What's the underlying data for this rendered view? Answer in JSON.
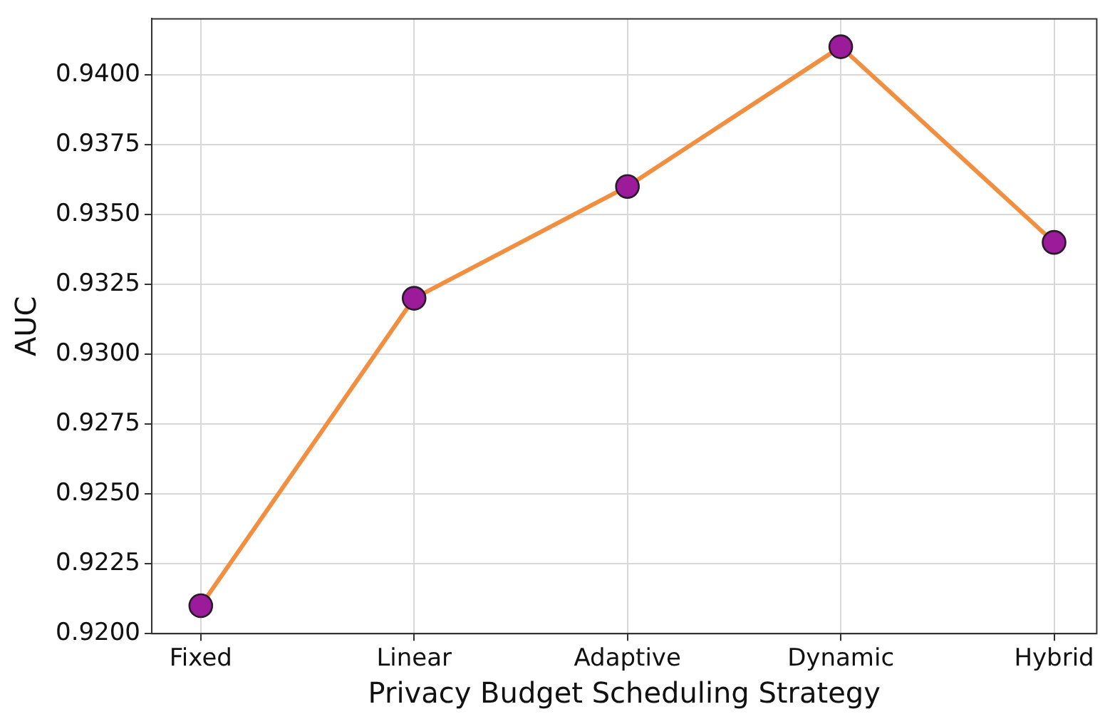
{
  "chart_data": {
    "type": "line",
    "xlabel": "Privacy Budget Scheduling Strategy",
    "ylabel": "AUC",
    "categories": [
      "Fixed",
      "Linear",
      "Adaptive",
      "Dynamic",
      "Hybrid"
    ],
    "series": [
      {
        "color": "#f28e3f",
        "values": [
          0.921,
          0.932,
          0.936,
          0.941,
          0.934
        ]
      }
    ],
    "ylim": [
      0.92,
      0.942
    ],
    "yticks": [
      {
        "value": 0.92,
        "label": "0.9200"
      },
      {
        "value": 0.9225,
        "label": "0.9225"
      },
      {
        "value": 0.925,
        "label": "0.9250"
      },
      {
        "value": 0.9275,
        "label": "0.9275"
      },
      {
        "value": 0.93,
        "label": "0.9300"
      },
      {
        "value": 0.9325,
        "label": "0.9325"
      },
      {
        "value": 0.935,
        "label": "0.9350"
      },
      {
        "value": 0.9375,
        "label": "0.9375"
      },
      {
        "value": 0.94,
        "label": "0.9400"
      }
    ],
    "grid": true,
    "marker": "circle",
    "line_style": "solid",
    "legend": false
  }
}
